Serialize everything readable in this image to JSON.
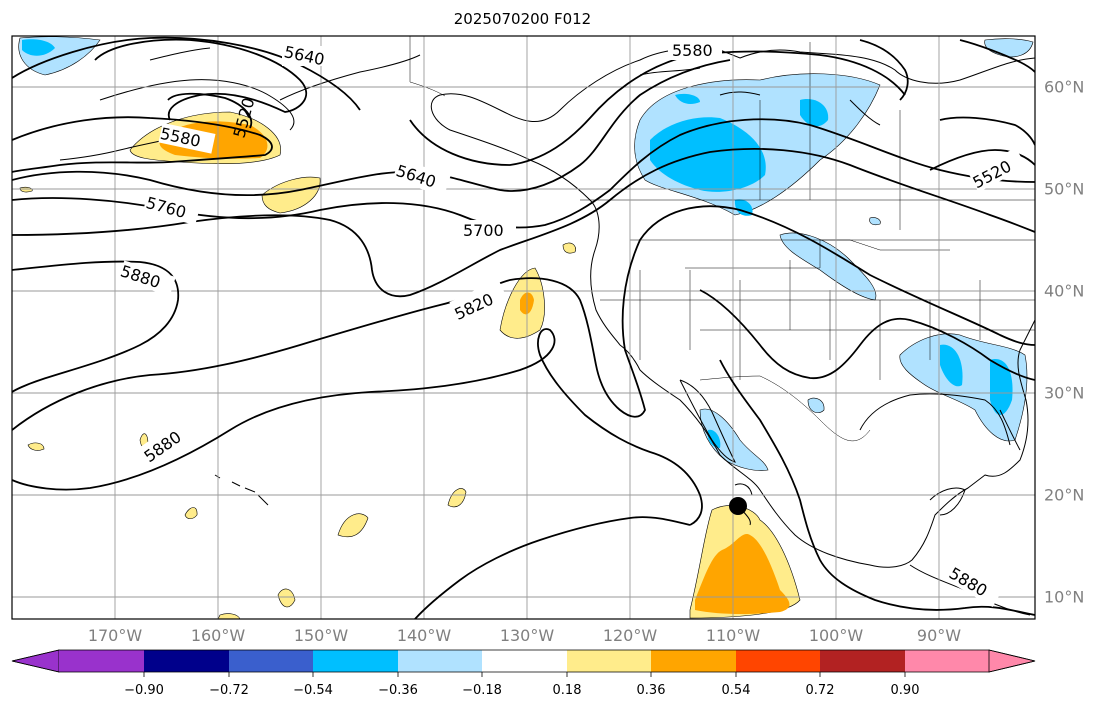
{
  "title": "2025070200 F012",
  "map": {
    "longitude_labels": [
      "170°W",
      "160°W",
      "150°W",
      "140°W",
      "130°W",
      "120°W",
      "110°W",
      "100°W",
      "90°W"
    ],
    "latitude_labels": [
      "60°N",
      "50°N",
      "40°N",
      "30°N",
      "20°N",
      "10°N"
    ],
    "contour_labels": [
      "5640",
      "5580",
      "5520",
      "5640",
      "5700",
      "5760",
      "5820",
      "5880",
      "5880",
      "5880",
      "5580",
      "5520"
    ],
    "marker": "storm-center-dot"
  },
  "colorbar": {
    "colors": [
      "#9932cc",
      "#00008b",
      "#3a5fcd",
      "#00bfff",
      "#b0e2ff",
      "#ffffff",
      "#ffec8b",
      "#ffa500",
      "#ff4500",
      "#b22222",
      "#ff88aa"
    ],
    "tick_labels": [
      "−0.90",
      "−0.72",
      "−0.54",
      "−0.36",
      "−0.18",
      "0.18",
      "0.36",
      "0.54",
      "0.72",
      "0.90"
    ]
  }
}
